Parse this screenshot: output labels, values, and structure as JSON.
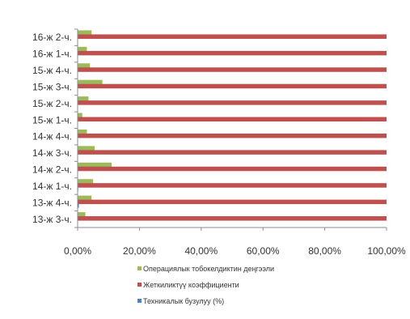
{
  "chart_data": {
    "type": "bar",
    "orientation": "horizontal",
    "categories": [
      "13-ж 3-ч.",
      "13-ж 4-ч.",
      "14-ж 1-ч.",
      "14-ж 2-ч.",
      "14-ж 3-ч.",
      "14-ж 4-ч.",
      "15-ж 1-ч.",
      "15-ж 2-ч.",
      "15-ж 3-ч.",
      "15-ж 4-ч.",
      "16-ж 1-ч.",
      "16-ж 2-ч."
    ],
    "series": [
      {
        "name": "Операциялык тобокелдиктин деңгээли",
        "color": "#9bbb59",
        "values": [
          2.5,
          4.5,
          5.0,
          11.0,
          5.5,
          3.0,
          1.5,
          3.5,
          8.0,
          4.0,
          3.0,
          4.5
        ]
      },
      {
        "name": "Жеткиликтүү коэффициенти",
        "color": "#c0504d",
        "values": [
          100,
          100,
          100,
          100,
          100,
          100,
          100,
          100,
          100,
          100,
          100,
          100
        ]
      },
      {
        "name": "Техникалык бузулуу (%)",
        "color": "#4f81bd",
        "values": [
          0.1,
          0.4,
          0.2,
          0.1,
          0.1,
          0.1,
          0.1,
          0.1,
          0.1,
          0.1,
          0.1,
          0.1
        ]
      }
    ],
    "xlim": [
      0,
      100
    ],
    "x_ticks": [
      "0,00%",
      "20,00%",
      "40,00%",
      "60,00%",
      "80,00%",
      "100,00%"
    ],
    "grid": false,
    "legend_position": "bottom"
  }
}
